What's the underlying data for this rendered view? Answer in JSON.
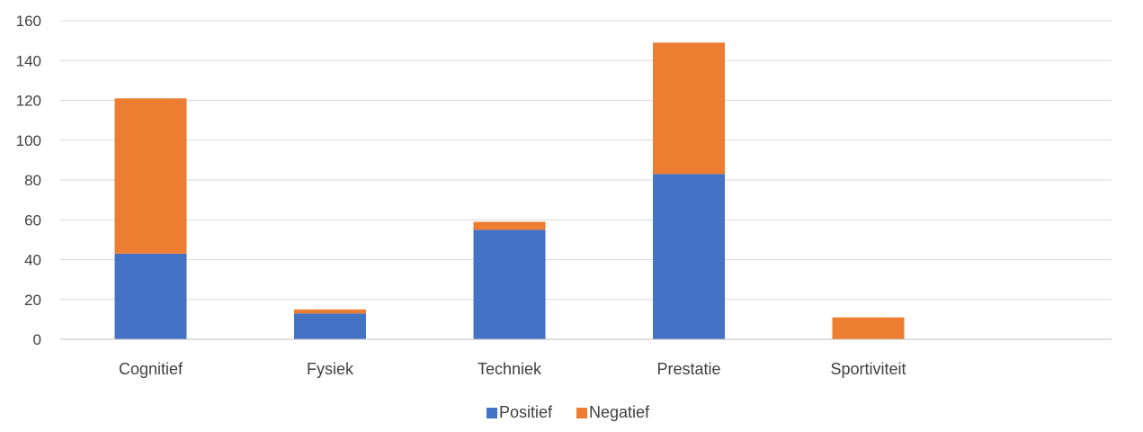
{
  "chart_data": {
    "type": "bar",
    "stacked": true,
    "categories": [
      "Cognitief",
      "Fysiek",
      "Techniek",
      "Prestatie",
      "Sportiviteit"
    ],
    "series": [
      {
        "name": "Positief",
        "values": [
          43,
          13,
          55,
          83,
          0
        ],
        "color": "#4472c4"
      },
      {
        "name": "Negatief",
        "values": [
          78,
          2,
          4,
          66,
          11
        ],
        "color": "#ed7d31"
      }
    ],
    "ylim": [
      0,
      160
    ],
    "yticks": [
      0,
      20,
      40,
      60,
      80,
      100,
      120,
      140,
      160
    ],
    "grid": true,
    "legend": "bottom",
    "title": "",
    "xlabel": "",
    "ylabel": "",
    "gridline_color": "#d9d9d9",
    "axis_color": "#bfbfbf"
  }
}
